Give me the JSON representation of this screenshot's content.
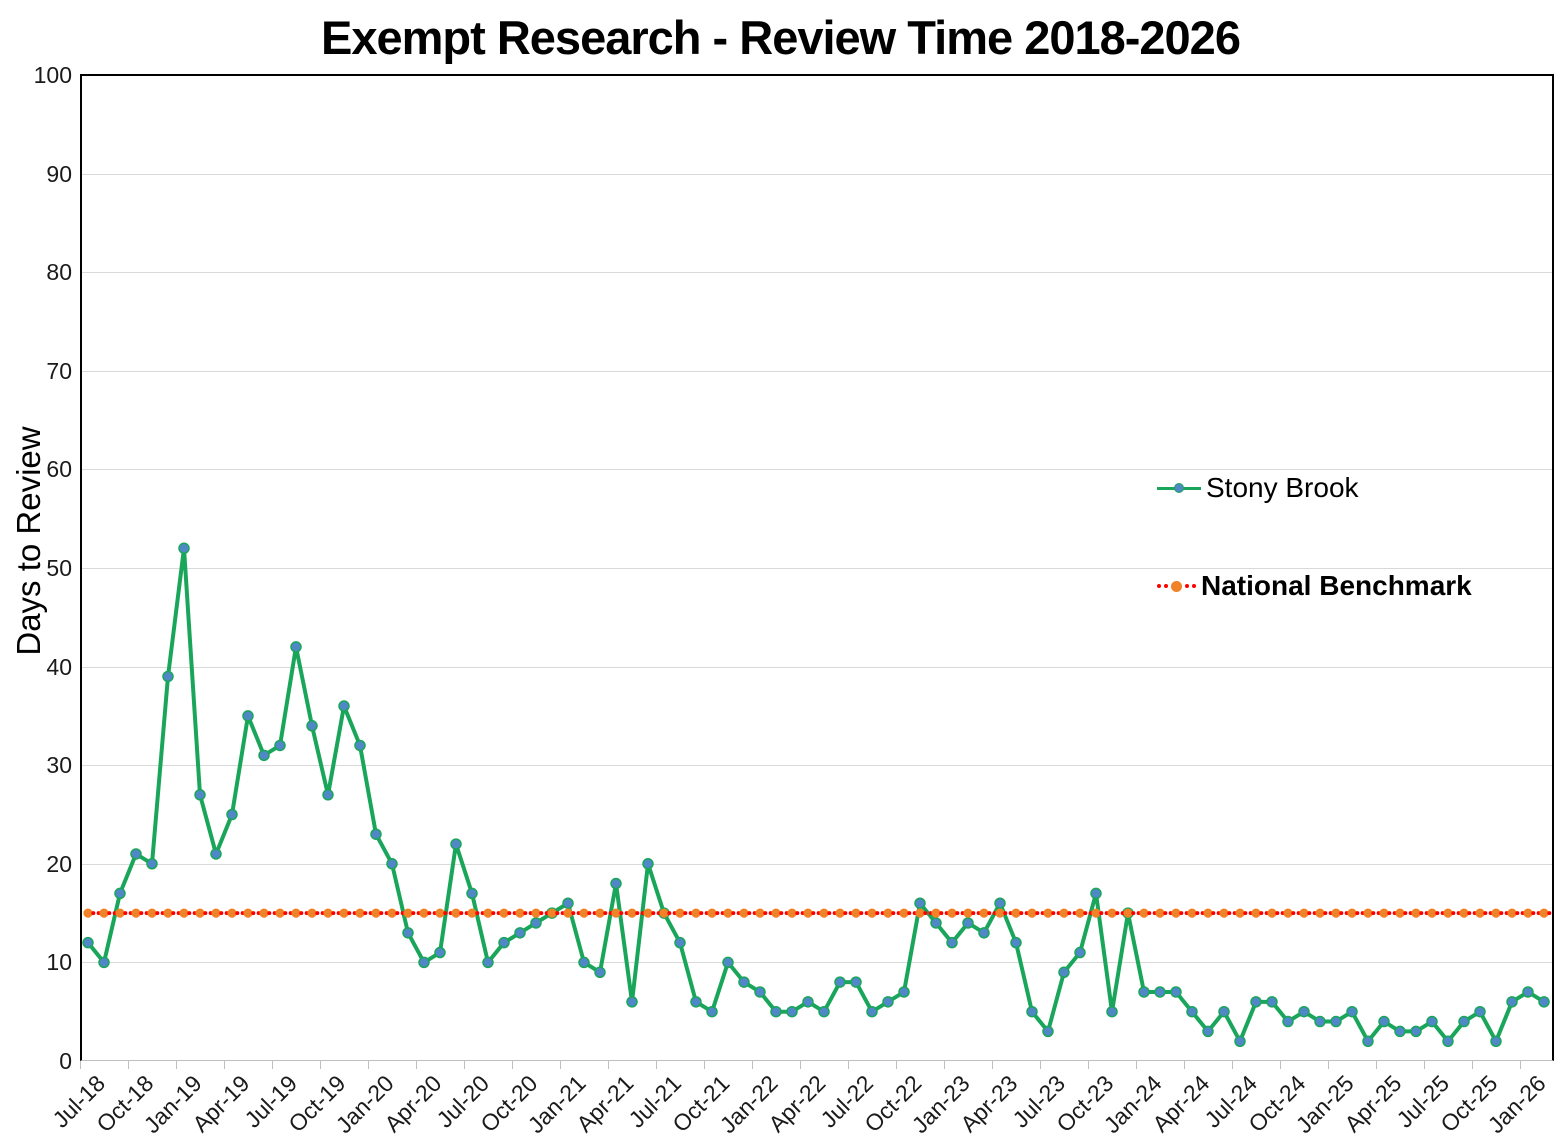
{
  "title": "Exempt Research - Review Time 2018-2026",
  "y_axis_title": "Days to Review",
  "legend": {
    "series1_label": "Stony Brook",
    "series2_label": "National Benchmark"
  },
  "colors": {
    "stony_brook_line": "#1AA65A",
    "stony_brook_marker": "#4F87C7",
    "benchmark_orange": "#F08327",
    "benchmark_red": "#FF0000",
    "gridline": "#D9D9D9",
    "axis_line": "#BFBFBF",
    "plot_border": "#000000"
  },
  "chart_data": {
    "type": "line",
    "title": "Exempt Research - Review Time 2018-2026",
    "xlabel": "",
    "ylabel": "Days to Review",
    "ylim": [
      0,
      100
    ],
    "y_tick_interval": 10,
    "y_tick_labels": [
      "0",
      "10",
      "20",
      "30",
      "40",
      "50",
      "60",
      "70",
      "80",
      "90",
      "100"
    ],
    "grid": "horizontal",
    "legend_position": "inside-right",
    "x_tick_labels": [
      "Jul-18",
      "Oct-18",
      "Jan-19",
      "Apr-19",
      "Jul-19",
      "Oct-19",
      "Jan-20",
      "Apr-20",
      "Jul-20",
      "Oct-20",
      "Jan-21",
      "Apr-21",
      "Jul-21",
      "Oct-21",
      "Jan-22",
      "Apr-22",
      "Jul-22",
      "Oct-22",
      "Jan-23",
      "Apr-23",
      "Jul-23",
      "Oct-23",
      "Jan-24",
      "Apr-24",
      "Jul-24",
      "Oct-24",
      "Jan-25",
      "Apr-25",
      "Jul-25",
      "Oct-25",
      "Jan-26"
    ],
    "categories": [
      "Jul-18",
      "Aug-18",
      "Sep-18",
      "Oct-18",
      "Nov-18",
      "Dec-18",
      "Jan-19",
      "Feb-19",
      "Mar-19",
      "Apr-19",
      "May-19",
      "Jun-19",
      "Jul-19",
      "Aug-19",
      "Sep-19",
      "Oct-19",
      "Nov-19",
      "Dec-19",
      "Jan-20",
      "Feb-20",
      "Mar-20",
      "Apr-20",
      "May-20",
      "Jun-20",
      "Jul-20",
      "Aug-20",
      "Sep-20",
      "Oct-20",
      "Nov-20",
      "Dec-20",
      "Jan-21",
      "Feb-21",
      "Mar-21",
      "Apr-21",
      "May-21",
      "Jun-21",
      "Jul-21",
      "Aug-21",
      "Sep-21",
      "Oct-21",
      "Nov-21",
      "Dec-21",
      "Jan-22",
      "Feb-22",
      "Mar-22",
      "Apr-22",
      "May-22",
      "Jun-22",
      "Jul-22",
      "Aug-22",
      "Sep-22",
      "Oct-22",
      "Nov-22",
      "Dec-22",
      "Jan-23",
      "Feb-23",
      "Mar-23",
      "Apr-23",
      "May-23",
      "Jun-23",
      "Jul-23",
      "Aug-23",
      "Sep-23",
      "Oct-23",
      "Nov-23",
      "Dec-23",
      "Jan-24",
      "Feb-24",
      "Mar-24",
      "Apr-24",
      "May-24",
      "Jun-24",
      "Jul-24",
      "Aug-24",
      "Sep-24",
      "Oct-24",
      "Nov-24",
      "Dec-24",
      "Jan-25",
      "Feb-25",
      "Mar-25",
      "Apr-25",
      "May-25",
      "Jun-25",
      "Jul-25",
      "Aug-25",
      "Sep-25",
      "Oct-25",
      "Nov-25",
      "Dec-25",
      "Jan-26",
      "Feb-26"
    ],
    "series": [
      {
        "name": "Stony Brook",
        "style": "solid-line-with-markers",
        "values": [
          12,
          10,
          17,
          21,
          20,
          39,
          52,
          27,
          21,
          25,
          35,
          31,
          32,
          42,
          34,
          27,
          36,
          32,
          23,
          20,
          13,
          10,
          11,
          22,
          17,
          10,
          12,
          13,
          14,
          15,
          16,
          10,
          9,
          18,
          6,
          20,
          15,
          12,
          6,
          5,
          10,
          8,
          7,
          5,
          5,
          6,
          5,
          8,
          8,
          5,
          6,
          7,
          16,
          14,
          12,
          14,
          13,
          16,
          12,
          5,
          3,
          9,
          11,
          17,
          5,
          15,
          7,
          7,
          7,
          5,
          3,
          5,
          2,
          6,
          6,
          4,
          5,
          4,
          4,
          5,
          2,
          4,
          3,
          3,
          4,
          2,
          4,
          5,
          2,
          6,
          7,
          6
        ]
      },
      {
        "name": "National Benchmark",
        "style": "dotted-line-with-markers",
        "constant_value": 15
      }
    ]
  }
}
